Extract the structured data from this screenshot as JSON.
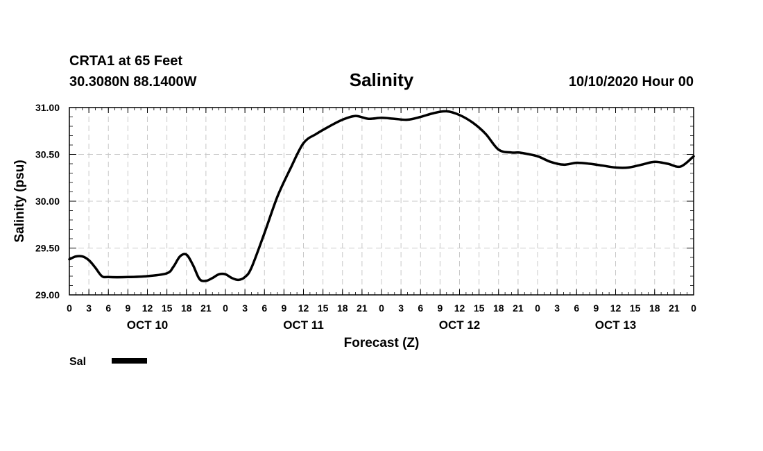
{
  "header": {
    "station": "CRTA1 at 65 Feet",
    "location": "30.3080N 88.1400W",
    "title": "Salinity",
    "run_time": "10/10/2020 Hour 00"
  },
  "legend": {
    "label": "Sal",
    "color": "#000000"
  },
  "chart_data": {
    "type": "line",
    "title": "Salinity",
    "xlabel": "Forecast (Z)",
    "ylabel": "Salinity (psu)",
    "xlim": [
      0,
      96
    ],
    "ylim": [
      29.0,
      31.0
    ],
    "grid": true,
    "legend_position": "bottom-left",
    "y_ticks": [
      "29.00",
      "29.50",
      "30.00",
      "30.50",
      "31.00"
    ],
    "x_tick_labels": [
      "0",
      "3",
      "6",
      "9",
      "12",
      "15",
      "18",
      "21",
      "0",
      "3",
      "6",
      "9",
      "12",
      "15",
      "18",
      "21",
      "0",
      "3",
      "6",
      "9",
      "12",
      "15",
      "18",
      "21",
      "0",
      "3",
      "6",
      "9",
      "12",
      "15",
      "18",
      "21",
      "0"
    ],
    "day_labels": [
      "OCT 10",
      "OCT 11",
      "OCT 12",
      "OCT 13"
    ],
    "series": [
      {
        "name": "Sal",
        "color": "#000000",
        "x": [
          0,
          1,
          2,
          3,
          4,
          5,
          6,
          9,
          12,
          15,
          16,
          17,
          18,
          19,
          20,
          21,
          22,
          23,
          24,
          25,
          26,
          27,
          28,
          30,
          32,
          34,
          36,
          38,
          40,
          42,
          44,
          46,
          48,
          50,
          52,
          54,
          56,
          58,
          60,
          62,
          64,
          66,
          68,
          69,
          70,
          72,
          74,
          76,
          78,
          80,
          82,
          84,
          86,
          88,
          90,
          92,
          94,
          96
        ],
        "y": [
          29.38,
          29.41,
          29.41,
          29.37,
          29.29,
          29.2,
          29.19,
          29.19,
          29.2,
          29.23,
          29.3,
          29.41,
          29.43,
          29.32,
          29.17,
          29.15,
          29.18,
          29.22,
          29.22,
          29.18,
          29.16,
          29.19,
          29.29,
          29.66,
          30.05,
          30.35,
          30.62,
          30.72,
          30.8,
          30.87,
          30.91,
          30.88,
          30.89,
          30.88,
          30.87,
          30.9,
          30.94,
          30.96,
          30.92,
          30.84,
          30.72,
          30.55,
          30.52,
          30.52,
          30.51,
          30.48,
          30.42,
          30.39,
          30.41,
          30.4,
          30.38,
          30.36,
          30.36,
          30.39,
          30.42,
          30.4,
          30.37,
          30.48
        ]
      }
    ]
  }
}
